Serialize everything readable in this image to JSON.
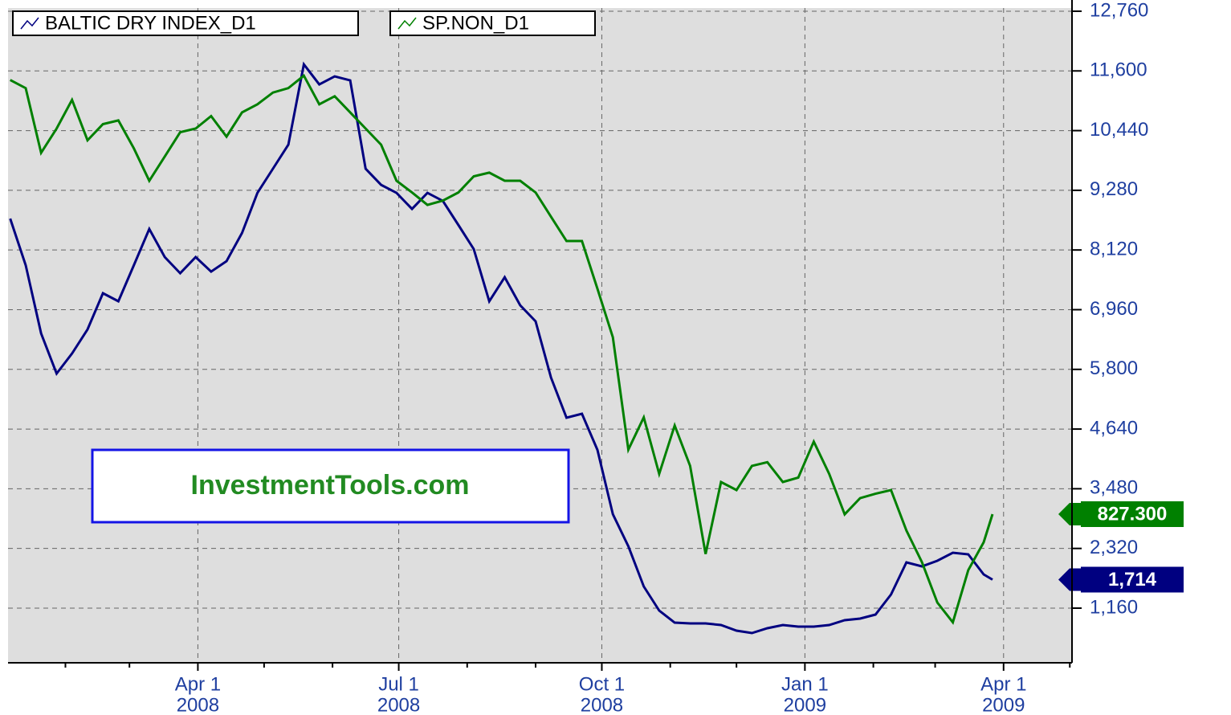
{
  "chart_data": {
    "type": "line",
    "watermark": "InvestmentTools.com",
    "xlim": [
      "2008-01-06",
      "2009-05-02"
    ],
    "xticks": [
      {
        "value": "2008-04-01",
        "label": [
          "Apr 1",
          "2008"
        ]
      },
      {
        "value": "2008-07-01",
        "label": [
          "Jul 1",
          "2008"
        ]
      },
      {
        "value": "2008-10-01",
        "label": [
          "Oct 1",
          "2008"
        ]
      },
      {
        "value": "2009-01-01",
        "label": [
          "Jan 1",
          "2009"
        ]
      },
      {
        "value": "2009-04-01",
        "label": [
          "Apr 1",
          "2009"
        ]
      }
    ],
    "xticks_minor": [
      "2008-02-01",
      "2008-03-01",
      "2008-05-01",
      "2008-06-01",
      "2008-08-01",
      "2008-09-01",
      "2008-11-01",
      "2008-12-01",
      "2009-02-01",
      "2009-03-01",
      "2009-05-01"
    ],
    "ylim": [
      98,
      12822
    ],
    "yticks": [
      {
        "value": 1160,
        "label": "1,160"
      },
      {
        "value": 2320,
        "label": "2,320"
      },
      {
        "value": 3480,
        "label": "3,480"
      },
      {
        "value": 4640,
        "label": "4,640"
      },
      {
        "value": 5800,
        "label": "5,800"
      },
      {
        "value": 6960,
        "label": "6,960"
      },
      {
        "value": 8120,
        "label": "8,120"
      },
      {
        "value": 9280,
        "label": "9,280"
      },
      {
        "value": 10440,
        "label": "10,440"
      },
      {
        "value": 11600,
        "label": "11,600"
      },
      {
        "value": 12760,
        "label": "12,760"
      }
    ],
    "y2lim": [
      625,
      1516
    ],
    "grid": true,
    "x": [
      "2008-01-07",
      "2008-01-14",
      "2008-01-21",
      "2008-01-28",
      "2008-02-04",
      "2008-02-11",
      "2008-02-18",
      "2008-02-25",
      "2008-03-03",
      "2008-03-10",
      "2008-03-17",
      "2008-03-24",
      "2008-03-31",
      "2008-04-07",
      "2008-04-14",
      "2008-04-21",
      "2008-04-28",
      "2008-05-05",
      "2008-05-12",
      "2008-05-19",
      "2008-05-26",
      "2008-06-02",
      "2008-06-09",
      "2008-06-16",
      "2008-06-23",
      "2008-06-30",
      "2008-07-07",
      "2008-07-14",
      "2008-07-21",
      "2008-07-28",
      "2008-08-04",
      "2008-08-11",
      "2008-08-18",
      "2008-08-25",
      "2008-09-01",
      "2008-09-08",
      "2008-09-15",
      "2008-09-22",
      "2008-09-29",
      "2008-10-06",
      "2008-10-13",
      "2008-10-20",
      "2008-10-27",
      "2008-11-03",
      "2008-11-10",
      "2008-11-17",
      "2008-11-24",
      "2008-12-01",
      "2008-12-08",
      "2008-12-15",
      "2008-12-22",
      "2008-12-29",
      "2009-01-05",
      "2009-01-12",
      "2009-01-19",
      "2009-01-26",
      "2009-02-02",
      "2009-02-09",
      "2009-02-16",
      "2009-02-23",
      "2009-03-02",
      "2009-03-09",
      "2009-03-16",
      "2009-03-23",
      "2009-03-27"
    ],
    "series": [
      {
        "name": "BALTIC DRY INDEX_D1",
        "color": "#000080",
        "values": [
          8730,
          7825,
          6499,
          5718,
          6108,
          6577,
          7279,
          7123,
          7825,
          8528,
          7982,
          7669,
          7982,
          7700,
          7903,
          8450,
          9230,
          9699,
          10167,
          11728,
          11338,
          11494,
          11416,
          9699,
          9386,
          9230,
          8918,
          9230,
          9074,
          8606,
          8137,
          7123,
          7591,
          7045,
          6733,
          5640,
          4860,
          4938,
          4235,
          2986,
          2362,
          1581,
          1113,
          879,
          863,
          863,
          832,
          723,
          676,
          770,
          832,
          801,
          801,
          832,
          926,
          957,
          1035,
          1425,
          2050,
          1972,
          2081,
          2237,
          2206,
          1816,
          1714
        ],
        "current": {
          "value": 1714,
          "label": "1,714"
        }
      },
      {
        "name": "SP.NON_D1",
        "color": "#008000",
        "axis": "y2",
        "values": [
          1418,
          1407,
          1319,
          1352,
          1391,
          1336,
          1358,
          1363,
          1325,
          1281,
          1314,
          1347,
          1352,
          1369,
          1341,
          1374,
          1385,
          1401,
          1407,
          1424,
          1385,
          1396,
          1374,
          1352,
          1330,
          1281,
          1265,
          1248,
          1254,
          1265,
          1287,
          1292,
          1281,
          1281,
          1265,
          1232,
          1199,
          1199,
          1134,
          1068,
          915,
          959,
          882,
          948,
          893,
          773,
          871,
          860,
          893,
          898,
          871,
          877,
          926,
          882,
          827,
          849,
          855,
          860,
          805,
          762,
          707,
          680,
          751,
          789,
          827.3
        ],
        "current": {
          "value": 827.3,
          "label": "827.300"
        }
      }
    ]
  }
}
